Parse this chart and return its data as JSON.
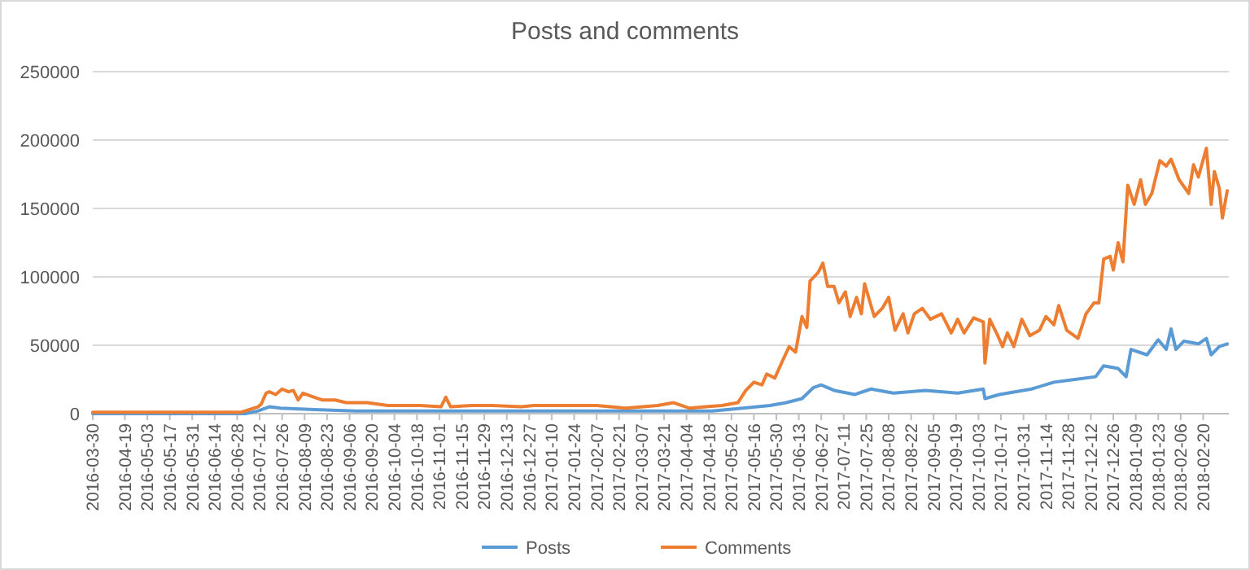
{
  "chart_data": {
    "type": "line",
    "title": "Posts and comments",
    "xlim": [
      "2016-03-30",
      "2018-03-08"
    ],
    "xticks": [
      "2016-03-30",
      "2016-04-19",
      "2016-05-03",
      "2016-05-17",
      "2016-05-31",
      "2016-06-14",
      "2016-06-28",
      "2016-07-12",
      "2016-07-26",
      "2016-08-09",
      "2016-08-23",
      "2016-09-06",
      "2016-09-20",
      "2016-10-04",
      "2016-10-18",
      "2016-11-01",
      "2016-11-15",
      "2016-11-29",
      "2016-12-13",
      "2016-12-27",
      "2017-01-10",
      "2017-01-24",
      "2017-02-07",
      "2017-02-21",
      "2017-03-07",
      "2017-03-21",
      "2017-04-04",
      "2017-04-18",
      "2017-05-02",
      "2017-05-16",
      "2017-05-30",
      "2017-06-13",
      "2017-06-27",
      "2017-07-11",
      "2017-07-25",
      "2017-08-08",
      "2017-08-22",
      "2017-09-05",
      "2017-09-19",
      "2017-10-03",
      "2017-10-17",
      "2017-10-31",
      "2017-11-14",
      "2017-11-28",
      "2017-12-12",
      "2017-12-26",
      "2018-01-09",
      "2018-01-23",
      "2018-02-06",
      "2018-02-20"
    ],
    "ylim": [
      0,
      250000
    ],
    "yticks": [
      0,
      50000,
      100000,
      150000,
      200000,
      250000
    ],
    "grid": "y",
    "legend": "bottom",
    "marker": "none",
    "line_style": "solid",
    "series": [
      {
        "name": "Posts",
        "color": "#5b9bd5",
        "x": [
          "2016-03-30",
          "2016-05-15",
          "2016-07-03",
          "2016-07-11",
          "2016-07-18",
          "2016-07-25",
          "2016-08-15",
          "2016-09-10",
          "2016-10-15",
          "2016-12-01",
          "2017-02-01",
          "2017-04-20",
          "2017-05-09",
          "2017-05-26",
          "2017-06-05",
          "2017-06-15",
          "2017-06-22",
          "2017-06-27",
          "2017-07-05",
          "2017-07-18",
          "2017-07-28",
          "2017-08-11",
          "2017-08-31",
          "2017-09-20",
          "2017-10-06",
          "2017-10-07",
          "2017-10-16",
          "2017-11-05",
          "2017-11-19",
          "2017-12-02",
          "2017-12-15",
          "2017-12-20",
          "2017-12-29",
          "2018-01-03",
          "2018-01-06",
          "2018-01-16",
          "2018-01-23",
          "2018-01-28",
          "2018-01-31",
          "2018-02-03",
          "2018-02-08",
          "2018-02-17",
          "2018-02-22",
          "2018-02-25",
          "2018-03-02",
          "2018-03-07"
        ],
        "values": [
          0,
          0,
          0,
          2000,
          5000,
          4000,
          3000,
          2000,
          2000,
          2000,
          2000,
          2000,
          4000,
          6000,
          8000,
          11000,
          19000,
          21000,
          17000,
          14000,
          18000,
          15000,
          17000,
          15000,
          18000,
          11000,
          14000,
          18000,
          23000,
          25000,
          27000,
          35000,
          33000,
          27000,
          47000,
          43000,
          54000,
          47000,
          62000,
          47000,
          53000,
          51000,
          55000,
          43000,
          49000,
          51000
        ]
      },
      {
        "name": "Comments",
        "color": "#ed7d31",
        "x": [
          "2016-03-30",
          "2016-05-10",
          "2016-06-30",
          "2016-07-03",
          "2016-07-11",
          "2016-07-13",
          "2016-07-16",
          "2016-07-18",
          "2016-07-22",
          "2016-07-26",
          "2016-07-30",
          "2016-08-02",
          "2016-08-05",
          "2016-08-08",
          "2016-08-15",
          "2016-08-20",
          "2016-08-28",
          "2016-09-04",
          "2016-09-17",
          "2016-09-30",
          "2016-10-20",
          "2016-11-02",
          "2016-11-05",
          "2016-11-08",
          "2016-11-21",
          "2016-12-04",
          "2016-12-22",
          "2016-12-30",
          "2017-01-22",
          "2017-02-07",
          "2017-02-25",
          "2017-03-17",
          "2017-03-27",
          "2017-04-06",
          "2017-04-16",
          "2017-04-26",
          "2017-05-06",
          "2017-05-11",
          "2017-05-16",
          "2017-05-21",
          "2017-05-24",
          "2017-05-29",
          "2017-06-03",
          "2017-06-07",
          "2017-06-11",
          "2017-06-15",
          "2017-06-18",
          "2017-06-20",
          "2017-06-25",
          "2017-06-28",
          "2017-07-01",
          "2017-07-05",
          "2017-07-08",
          "2017-07-12",
          "2017-07-15",
          "2017-07-19",
          "2017-07-22",
          "2017-07-24",
          "2017-07-30",
          "2017-08-04",
          "2017-08-08",
          "2017-08-12",
          "2017-08-17",
          "2017-08-20",
          "2017-08-24",
          "2017-08-29",
          "2017-09-03",
          "2017-09-10",
          "2017-09-16",
          "2017-09-20",
          "2017-09-24",
          "2017-09-30",
          "2017-10-06",
          "2017-10-07",
          "2017-10-10",
          "2017-10-15",
          "2017-10-18",
          "2017-10-21",
          "2017-10-25",
          "2017-10-30",
          "2017-11-04",
          "2017-11-10",
          "2017-11-14",
          "2017-11-19",
          "2017-11-22",
          "2017-11-27",
          "2017-12-04",
          "2017-12-09",
          "2017-12-14",
          "2017-12-17",
          "2017-12-20",
          "2017-12-24",
          "2017-12-26",
          "2017-12-29",
          "2018-01-01",
          "2018-01-04",
          "2018-01-08",
          "2018-01-12",
          "2018-01-15",
          "2018-01-19",
          "2018-01-24",
          "2018-01-28",
          "2018-01-31",
          "2018-02-05",
          "2018-02-11",
          "2018-02-14",
          "2018-02-17",
          "2018-02-22",
          "2018-02-25",
          "2018-02-27",
          "2018-03-02",
          "2018-03-04",
          "2018-03-07"
        ],
        "values": [
          1000,
          1000,
          1000,
          2000,
          5000,
          7000,
          15000,
          16000,
          14000,
          18000,
          16000,
          17000,
          10000,
          15000,
          12000,
          10000,
          10000,
          8000,
          8000,
          6000,
          6000,
          5000,
          12000,
          5000,
          6000,
          6000,
          5000,
          6000,
          6000,
          6000,
          4000,
          6000,
          8000,
          4000,
          5000,
          6000,
          8000,
          17000,
          23000,
          21000,
          29000,
          26000,
          39000,
          49000,
          45000,
          71000,
          63000,
          97000,
          103000,
          110000,
          93000,
          93000,
          81000,
          89000,
          71000,
          85000,
          73000,
          95000,
          71000,
          77000,
          85000,
          61000,
          73000,
          59000,
          73000,
          77000,
          69000,
          73000,
          59000,
          69000,
          59000,
          70000,
          67000,
          37000,
          69000,
          57000,
          49000,
          59000,
          49000,
          69000,
          57000,
          61000,
          71000,
          65000,
          79000,
          61000,
          55000,
          73000,
          81000,
          81000,
          113000,
          115000,
          105000,
          125000,
          111000,
          167000,
          153000,
          171000,
          153000,
          161000,
          185000,
          181000,
          186000,
          171000,
          161000,
          182000,
          173000,
          194000,
          153000,
          177000,
          165000,
          143000,
          163000
        ]
      }
    ]
  }
}
